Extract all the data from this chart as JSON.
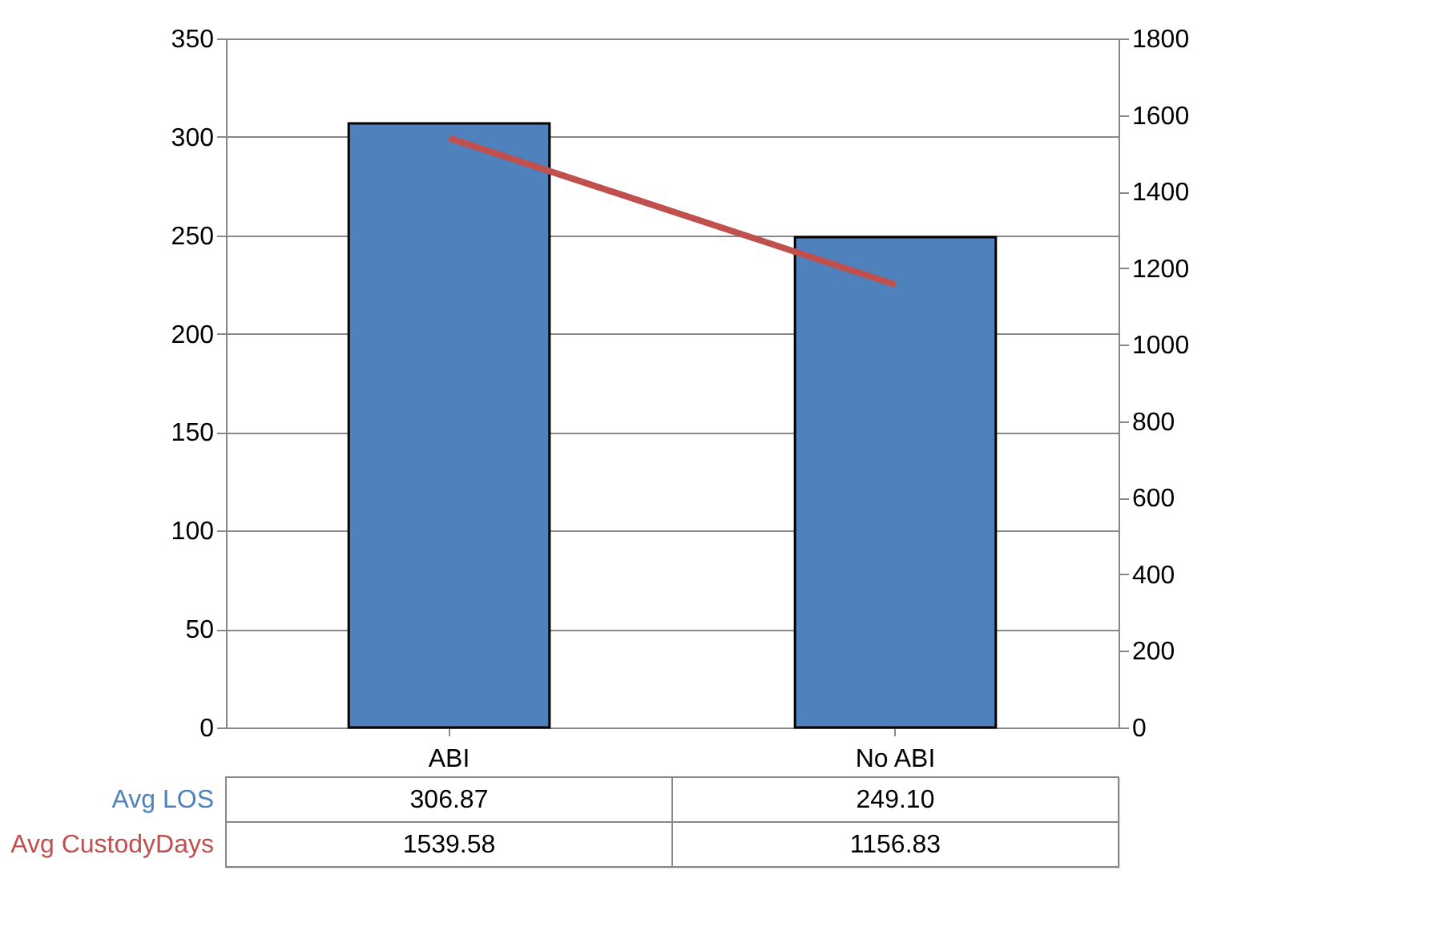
{
  "chart_data": {
    "type": "bar",
    "categories": [
      "ABI",
      "No ABI"
    ],
    "series": [
      {
        "name": "Avg LOS",
        "color": "#4f81bd",
        "values": [
          306.87,
          249.1
        ],
        "value_labels": [
          "306.87",
          "249.10"
        ]
      },
      {
        "name": "Avg CustodyDays",
        "type": "line",
        "axis": "y2",
        "color": "#c0504d",
        "values": [
          1539.58,
          1156.83
        ],
        "value_labels": [
          "1539.58",
          "1156.83"
        ]
      }
    ],
    "ylim": [
      0,
      350
    ],
    "yticks": [
      0,
      50,
      100,
      150,
      200,
      250,
      300,
      350
    ],
    "y2lim": [
      0,
      1800
    ],
    "y2ticks": [
      0,
      200,
      400,
      600,
      800,
      1000,
      1200,
      1400,
      1600,
      1800
    ],
    "grid": "y",
    "legend": false
  }
}
